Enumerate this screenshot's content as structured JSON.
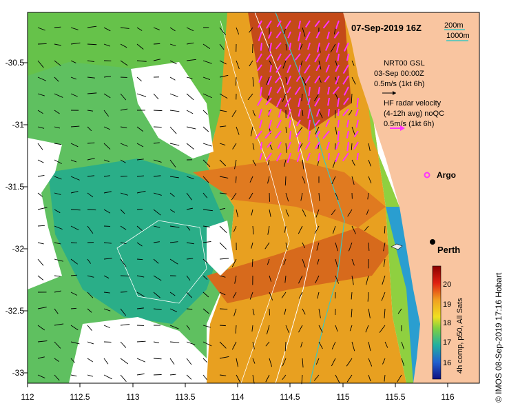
{
  "header": {
    "date": "07-Sep-2019 16Z",
    "depth_200": "200m",
    "depth_1000": "1000m"
  },
  "legend": {
    "gsl_title": "NRT00 GSL",
    "gsl_date": "03-Sep 00:00Z",
    "gsl_scale": "0.5m/s (1kt 6h)",
    "hf_title": "HF radar velocity",
    "hf_sub": "(4-12h avg) noQC",
    "hf_scale": "0.5m/s (1kt 6h)",
    "argo": "Argo"
  },
  "places": {
    "perth": "Perth"
  },
  "colorbar": {
    "ticks": [
      "20",
      "19",
      "18",
      "17",
      "16"
    ],
    "caption": "4h comp, p50, All Sats"
  },
  "axes": {
    "x_ticks": [
      "112",
      "112.5",
      "113",
      "113.5",
      "114",
      "114.5",
      "115",
      "115.5",
      "116"
    ],
    "y_ticks": [
      "-30.5",
      "-31",
      "-31.5",
      "-32",
      "-32.5",
      "-33"
    ]
  },
  "credit": "© IMOS 08-Sep-2019 17:16 Hobart",
  "colors": {
    "land": "#f9c5a0",
    "warm_sst": "#e8a020",
    "mid_sst": "#7fc83a",
    "cool_sst": "#2ab08a",
    "hf_vectors": "#ff33ff",
    "isobath": "#3ec7c0"
  }
}
